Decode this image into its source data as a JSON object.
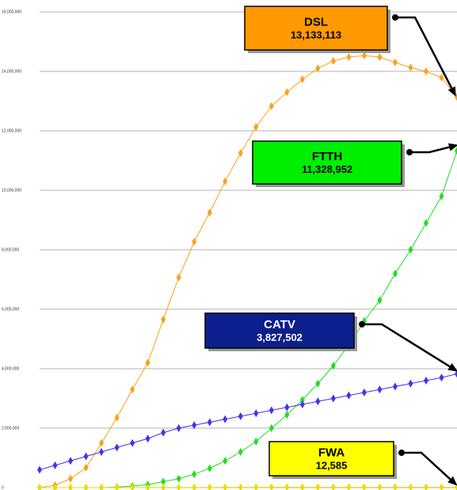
{
  "chart_data": {
    "type": "line",
    "categories": [
      null,
      null,
      null,
      null,
      null,
      null,
      null,
      null,
      null,
      null,
      null,
      null,
      null,
      null,
      null,
      null,
      null,
      null,
      null,
      null,
      null,
      null,
      null,
      null,
      null,
      null,
      null,
      null
    ],
    "ylim": [
      0,
      16000000
    ],
    "yticks": [
      0,
      {
        "value": 2000000,
        "label": "2,000,000"
      },
      {
        "value": 4000000,
        "label": "4,000,000"
      },
      {
        "value": 6000000,
        "label": "6,000,000"
      },
      {
        "value": 8000000,
        "label": "8,000,000"
      },
      {
        "value": 10000000,
        "label": "10,000,000"
      },
      {
        "value": 12000000,
        "label": "12,000,000"
      },
      {
        "value": 14000000,
        "label": "14,000,000"
      },
      {
        "value": 16000000,
        "label": "16,000,000"
      }
    ],
    "grid": true,
    "series": [
      {
        "name": "DSL",
        "color": "#f7a21b",
        "box_color": "#ff9900",
        "values": [
          0,
          80000,
          300000,
          670000,
          1500000,
          2350000,
          3300000,
          4200000,
          5650000,
          7070000,
          8270000,
          9250000,
          10300000,
          11250000,
          12130000,
          12830000,
          13300000,
          13730000,
          14100000,
          14350000,
          14480000,
          14530000,
          14480000,
          14300000,
          14130000,
          14000000,
          13790000,
          13133113
        ],
        "value_labels": [
          null,
          null,
          null,
          null,
          null,
          null,
          null,
          null,
          null,
          null,
          null,
          null,
          null,
          null,
          null,
          null,
          null,
          null,
          null,
          null,
          null,
          null,
          null,
          null,
          null,
          null,
          null,
          "13,133,113"
        ]
      },
      {
        "name": "FTTH",
        "color": "#22dd22",
        "box_color": "#00ee00",
        "values": [
          0,
          0,
          0,
          0,
          0,
          20000,
          50000,
          100000,
          200000,
          300000,
          450000,
          650000,
          900000,
          1200000,
          1550000,
          2000000,
          2450000,
          2950000,
          3500000,
          4100000,
          4800000,
          5600000,
          6300000,
          7200000,
          8000000,
          8900000,
          9800000,
          11328952
        ],
        "value_labels": [
          null,
          null,
          null,
          null,
          null,
          null,
          null,
          null,
          null,
          null,
          null,
          null,
          null,
          null,
          null,
          null,
          null,
          null,
          null,
          null,
          null,
          null,
          null,
          null,
          null,
          null,
          null,
          "11,328,952"
        ]
      },
      {
        "name": "CATV",
        "color": "#4433ee",
        "box_color": "#0c1f8c",
        "values": [
          600000,
          750000,
          900000,
          1050000,
          1200000,
          1350000,
          1500000,
          1650000,
          1850000,
          2000000,
          2100000,
          2200000,
          2300000,
          2400000,
          2500000,
          2600000,
          2700000,
          2800000,
          2900000,
          3000000,
          3100000,
          3200000,
          3300000,
          3400000,
          3500000,
          3600000,
          3700000,
          3827502
        ],
        "value_labels": [
          null,
          null,
          null,
          null,
          null,
          null,
          null,
          null,
          null,
          null,
          null,
          null,
          null,
          null,
          null,
          null,
          null,
          null,
          null,
          null,
          null,
          null,
          null,
          null,
          null,
          null,
          null,
          "3,827,502"
        ]
      },
      {
        "name": "FWA",
        "color": "#eedd00",
        "box_color": "#ffff00",
        "values": [
          0,
          0,
          0,
          0,
          1000,
          2000,
          3000,
          4000,
          5000,
          6000,
          7000,
          8000,
          9000,
          10000,
          11000,
          12000,
          12500,
          13000,
          13500,
          14000,
          14500,
          15000,
          15000,
          14500,
          14000,
          13500,
          13000,
          12585
        ],
        "value_labels": [
          null,
          null,
          null,
          null,
          null,
          null,
          null,
          null,
          null,
          null,
          null,
          null,
          null,
          null,
          null,
          null,
          null,
          null,
          null,
          null,
          null,
          null,
          null,
          null,
          null,
          null,
          null,
          "12,585"
        ]
      }
    ]
  }
}
